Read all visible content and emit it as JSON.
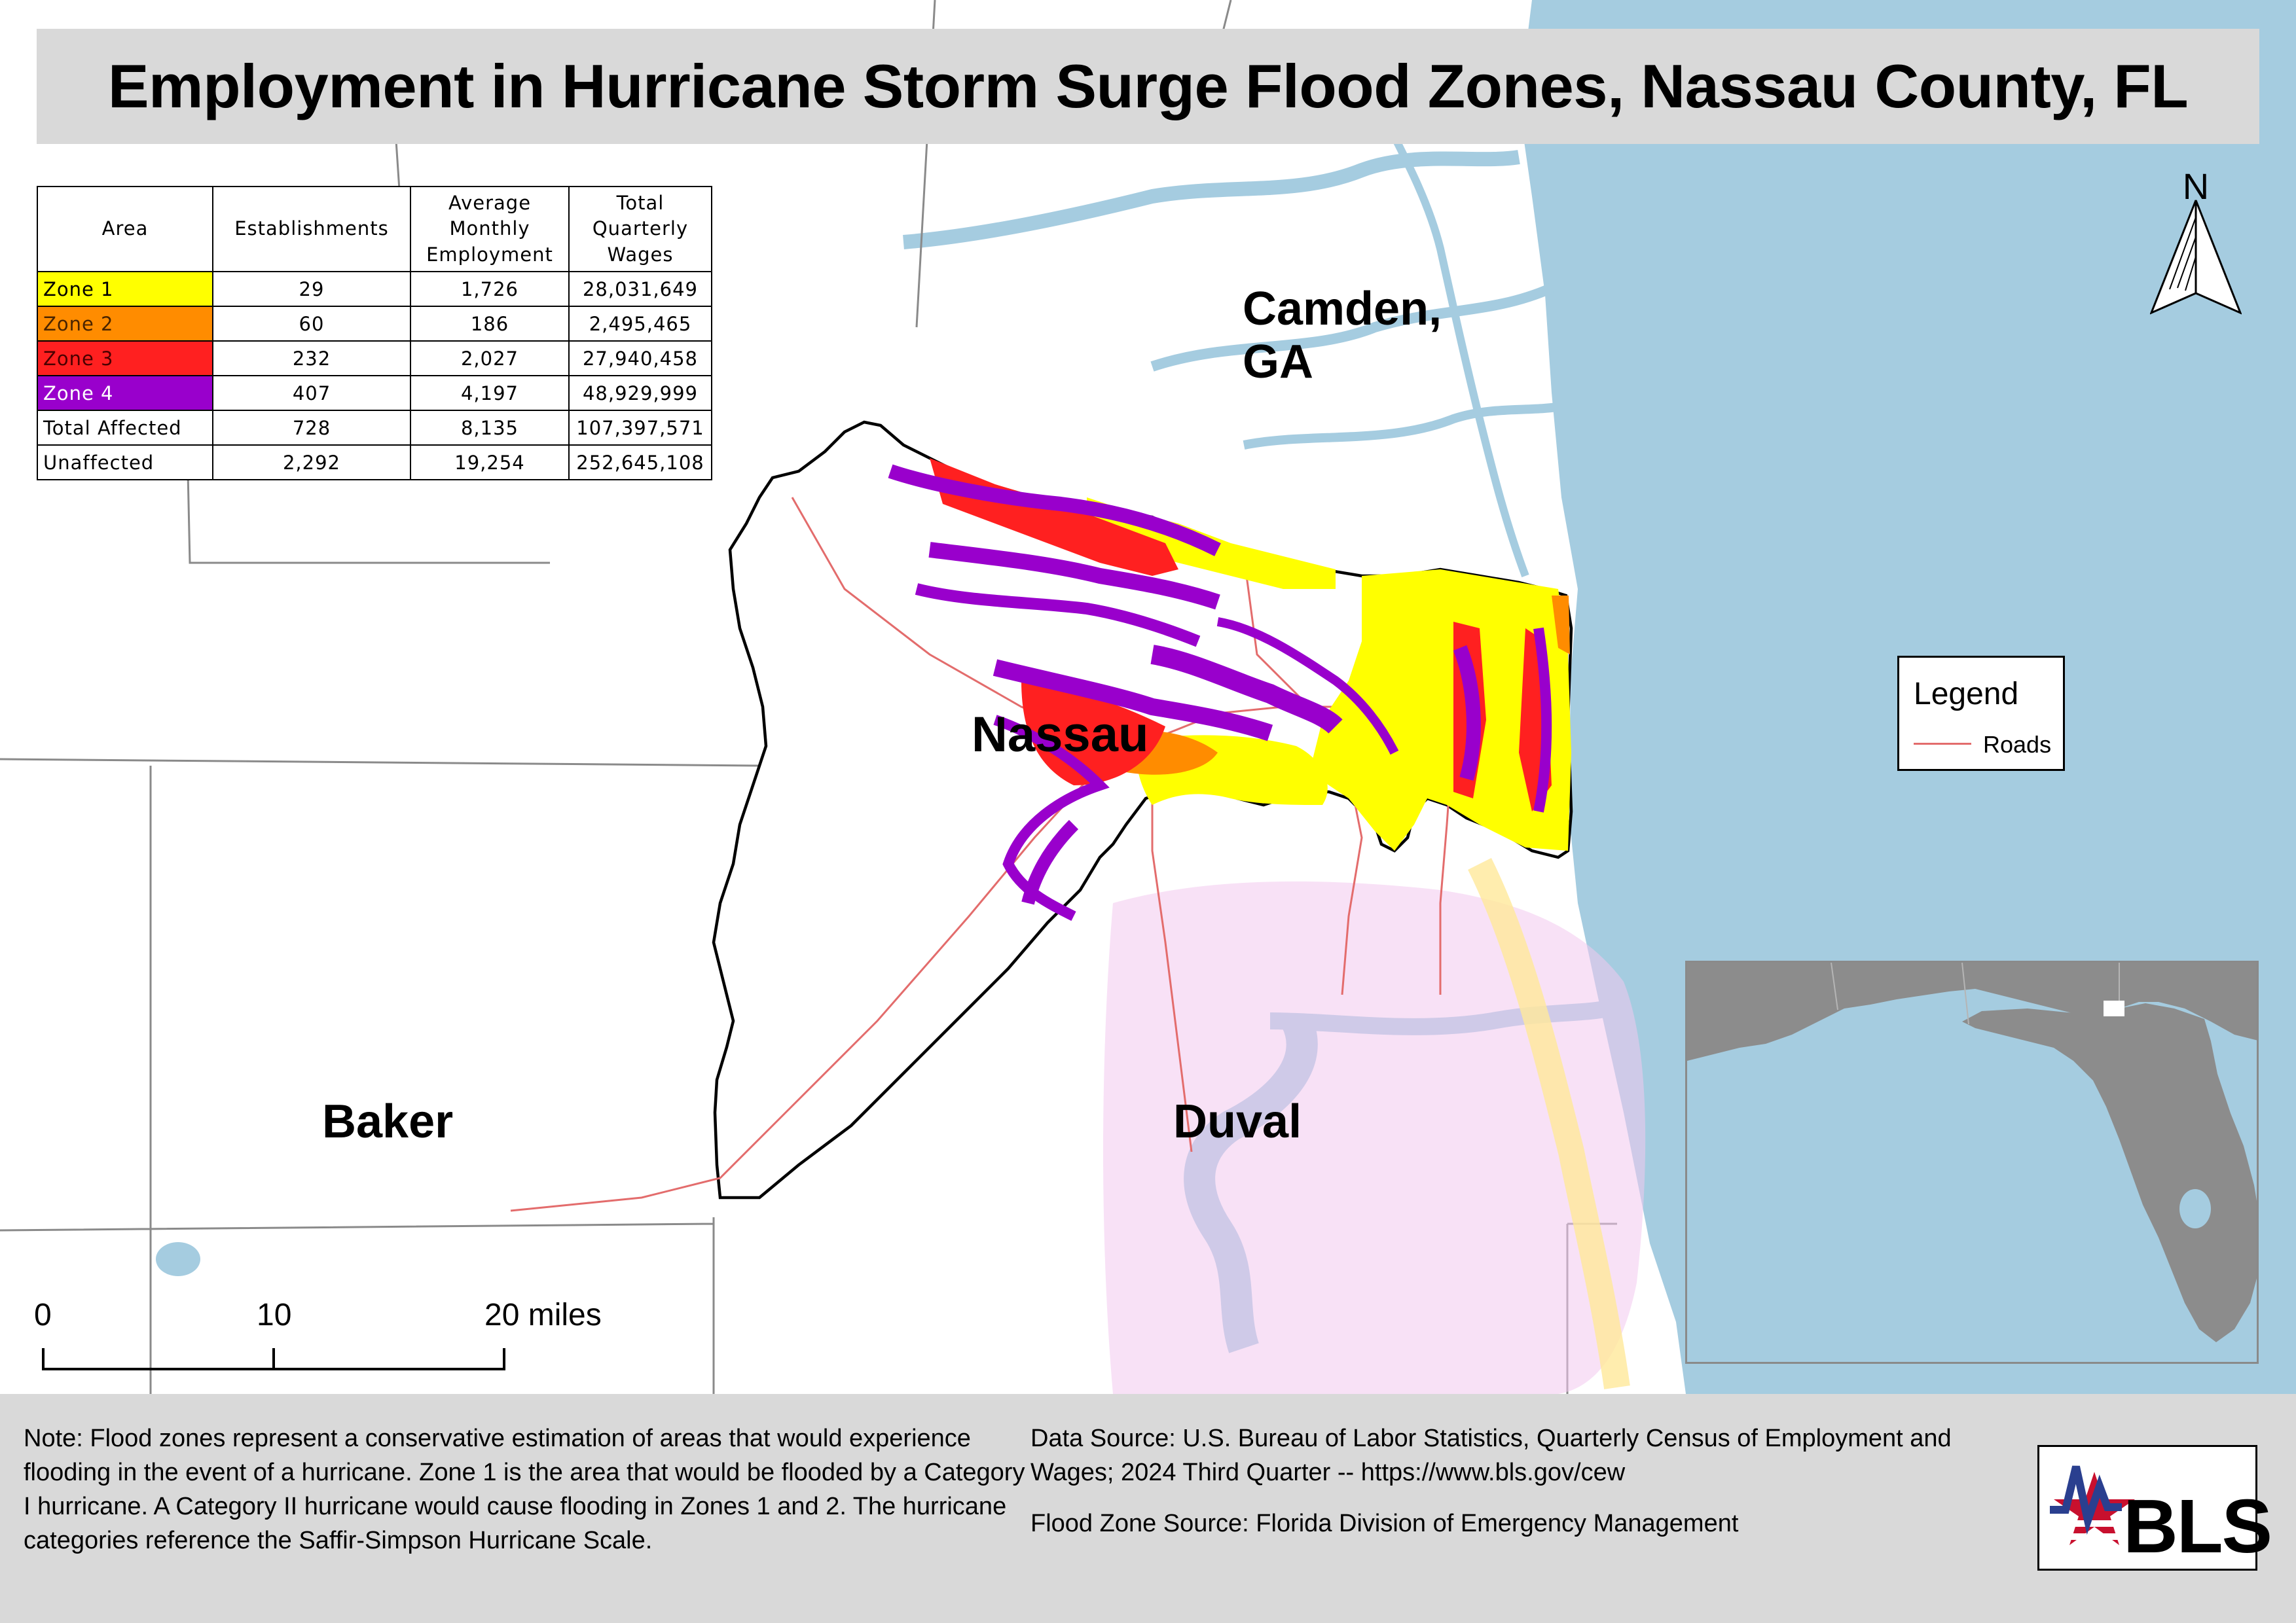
{
  "title": "Employment in Hurricane Storm Surge Flood Zones, Nassau County, FL",
  "places": {
    "camden": "Camden,\nGA",
    "nassau": "Nassau",
    "baker": "Baker",
    "duval": "Duval"
  },
  "north_arrow": {
    "letter": "N"
  },
  "legend": {
    "title": "Legend",
    "items": [
      {
        "label": "Roads",
        "color": "#e36c6c"
      }
    ]
  },
  "table": {
    "headers": [
      "Area",
      "Establishments",
      "Average\nMonthly\nEmployment",
      "Total\nQuarterly\nWages"
    ],
    "rows": [
      {
        "area": "Zone 1",
        "color": "#ffff00",
        "establishments": "29",
        "employment": "1,726",
        "wages": "28,031,649"
      },
      {
        "area": "Zone 2",
        "color": "#ff8c00",
        "establishments": "60",
        "employment": "186",
        "wages": "2,495,465"
      },
      {
        "area": "Zone 3",
        "color": "#ff2020",
        "establishments": "232",
        "employment": "2,027",
        "wages": "27,940,458"
      },
      {
        "area": "Zone 4",
        "color": "#9900cc",
        "establishments": "407",
        "employment": "4,197",
        "wages": "48,929,999"
      },
      {
        "area": "Total Affected",
        "color": "#ffffff",
        "establishments": "728",
        "employment": "8,135",
        "wages": "107,397,571"
      },
      {
        "area": "Unaffected",
        "color": "#ffffff",
        "establishments": "2,292",
        "employment": "19,254",
        "wages": "252,645,108"
      }
    ]
  },
  "scale_bar": {
    "labels": [
      "0",
      "10",
      "20 miles"
    ]
  },
  "footer": {
    "note": "Note: Flood zones represent a conservative estimation of areas that would experience flooding in the event of a hurricane. Zone 1 is the area that would be flooded by a Category I hurricane. A Category II hurricane would cause flooding in Zones 1 and 2. The hurricane categories reference the Saffir-Simpson Hurricane Scale.",
    "data_source": "Data Source: U.S. Bureau of Labor Statistics, Quarterly Census of Employment and Wages; 2024 Third Quarter -- https://www.bls.gov/cew",
    "flood_source": "Flood Zone Source: Florida Division of Emergency Management"
  },
  "logo": {
    "text": "BLS"
  },
  "colors": {
    "ocean": "#a5cce0",
    "land": "#ffffff",
    "inset_land": "#8c8c8c",
    "panel": "#d9d9d9",
    "road": "#e36c6c"
  }
}
